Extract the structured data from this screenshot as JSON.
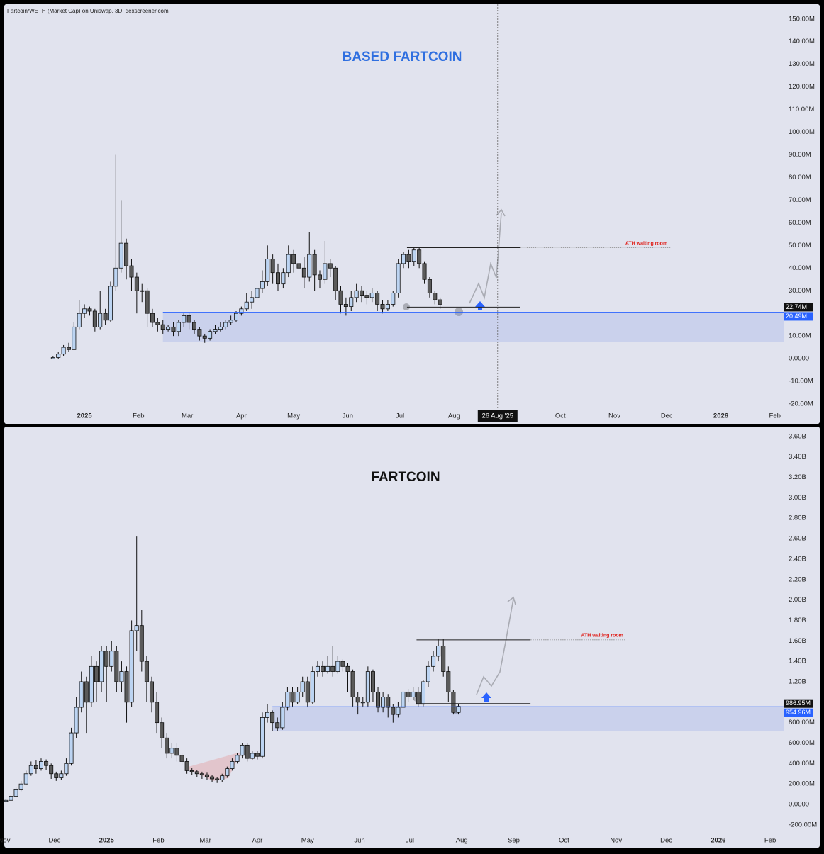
{
  "chart_data": [
    {
      "type": "candlestick",
      "source": "Fartcoin/WETH (Market Cap) on Uniswap, 3D, dexscreener.com",
      "title": "BASED FARTCOIN",
      "title_color": "#2f6fe0",
      "up_color": "#bcd4f2",
      "down_color": "#5a5a5a",
      "x": [
        -18,
        -15,
        -12,
        -9,
        -6,
        -3,
        0,
        3,
        6,
        9,
        12,
        15,
        18,
        21,
        24,
        27,
        30,
        33,
        36,
        39,
        42,
        45,
        48,
        51,
        54,
        57,
        60,
        63,
        66,
        69,
        72,
        75,
        78,
        81,
        84,
        87,
        90,
        93,
        96,
        99,
        102,
        105,
        108,
        111,
        114,
        117,
        120,
        123,
        126,
        129,
        132,
        135,
        138,
        141,
        144,
        147,
        150,
        153,
        156,
        159,
        162,
        165,
        168,
        171,
        174,
        177,
        180,
        183,
        186,
        189,
        192,
        195,
        198,
        201,
        204
      ],
      "open": [
        0,
        0.5,
        2,
        5,
        4,
        14,
        20,
        22,
        21,
        14,
        20,
        17,
        32,
        40,
        51,
        41,
        36,
        30,
        30,
        20,
        16,
        15,
        13,
        14,
        12,
        16,
        19,
        16,
        13,
        10,
        9,
        12,
        13,
        14,
        16,
        17,
        20,
        22,
        25,
        27,
        31,
        34,
        44,
        38,
        33,
        38,
        46,
        42,
        40,
        36,
        46,
        37,
        35,
        42,
        40,
        30,
        24,
        23,
        27,
        30,
        28,
        27,
        29,
        24,
        22,
        24,
        29,
        42,
        46,
        43,
        48,
        42,
        35,
        29,
        26
      ],
      "high": [
        1,
        3,
        6,
        7,
        16,
        26,
        24,
        23,
        22,
        30,
        22,
        34,
        90,
        70,
        53,
        44,
        38,
        33,
        31,
        22,
        18,
        17,
        15,
        16,
        17,
        20,
        20,
        17,
        14,
        11,
        13,
        15,
        16,
        17,
        19,
        21,
        23,
        29,
        30,
        37,
        39,
        50,
        46,
        42,
        40,
        50,
        48,
        44,
        45,
        56,
        48,
        39,
        52,
        44,
        41,
        32,
        27,
        30,
        33,
        32,
        30,
        31,
        30,
        26,
        26,
        30,
        44,
        47,
        48,
        49,
        49,
        43,
        36,
        30,
        27
      ],
      "low": [
        0,
        0,
        1,
        3,
        4,
        13,
        18,
        19,
        12,
        13,
        15,
        16,
        30,
        38,
        35,
        30,
        20,
        25,
        14,
        14,
        12,
        11,
        12,
        10,
        10,
        14,
        13,
        11,
        8,
        7,
        8,
        11,
        12,
        13,
        15,
        16,
        19,
        21,
        22,
        25,
        29,
        32,
        33,
        30,
        31,
        36,
        38,
        37,
        31,
        34,
        30,
        31,
        33,
        36,
        26,
        20,
        19,
        21,
        25,
        25,
        24,
        25,
        21,
        20,
        21,
        23,
        27,
        40,
        40,
        41,
        40,
        33,
        27,
        24,
        22
      ],
      "close": [
        0.5,
        2,
        5,
        4,
        14,
        20,
        22,
        21,
        14,
        20,
        17,
        32,
        40,
        51,
        41,
        36,
        30,
        30,
        20,
        16,
        15,
        13,
        14,
        12,
        16,
        19,
        16,
        13,
        10,
        9,
        12,
        13,
        14,
        16,
        17,
        20,
        22,
        25,
        27,
        31,
        34,
        44,
        38,
        33,
        38,
        46,
        42,
        40,
        36,
        46,
        37,
        35,
        42,
        40,
        30,
        24,
        23,
        27,
        30,
        28,
        27,
        29,
        24,
        22,
        24,
        29,
        42,
        46,
        43,
        48,
        42,
        35,
        29,
        26,
        24
      ],
      "xlim": [
        -46,
        401
      ],
      "ylim": [
        -22.5,
        156.5
      ],
      "xticks": [
        {
          "value": 0,
          "label": "2025"
        },
        {
          "value": 31,
          "label": "Feb"
        },
        {
          "value": 59,
          "label": "Mar"
        },
        {
          "value": 90,
          "label": "Apr"
        },
        {
          "value": 120,
          "label": "May"
        },
        {
          "value": 151,
          "label": "Jun"
        },
        {
          "value": 181,
          "label": "Jul"
        },
        {
          "value": 212,
          "label": "Aug"
        },
        {
          "value": 273,
          "label": "Oct"
        },
        {
          "value": 304,
          "label": "Nov"
        },
        {
          "value": 334,
          "label": "Dec"
        },
        {
          "value": 365,
          "label": "2026"
        },
        {
          "value": 396,
          "label": "Feb"
        }
      ],
      "yticks": [
        {
          "value": 150,
          "label": "150.00M"
        },
        {
          "value": 140,
          "label": "140.00M"
        },
        {
          "value": 130,
          "label": "130.00M"
        },
        {
          "value": 120,
          "label": "120.00M"
        },
        {
          "value": 110,
          "label": "110.00M"
        },
        {
          "value": 100,
          "label": "100.00M"
        },
        {
          "value": 90,
          "label": "90.00M"
        },
        {
          "value": 80,
          "label": "80.00M"
        },
        {
          "value": 70,
          "label": "70.00M"
        },
        {
          "value": 60,
          "label": "60.00M"
        },
        {
          "value": 50,
          "label": "50.00M"
        },
        {
          "value": 40,
          "label": "40.00M"
        },
        {
          "value": 30,
          "label": "30.00M"
        },
        {
          "value": 10,
          "label": "10.00M"
        },
        {
          "value": 0,
          "label": "0.0000"
        },
        {
          "value": -10,
          "label": "-10.00M"
        },
        {
          "value": -20,
          "label": "-20.00M"
        }
      ],
      "levels": [
        {
          "value": 49,
          "from": 185,
          "to": 250
        },
        {
          "value": 22.74,
          "label": "22.74M",
          "from": 185,
          "to": 250
        },
        {
          "value": 20.49,
          "label": "20.49M",
          "color": "#2962ff",
          "from": 45,
          "zone_low": 7.5
        }
      ],
      "annotation": {
        "text": "ATH waiting room",
        "to": 336
      },
      "crosshair": {
        "value": 237,
        "label": "26 Aug '25"
      }
    },
    {
      "type": "candlestick",
      "title": "FARTCOIN",
      "title_color": "#111111",
      "up_color": "#bcd4f2",
      "down_color": "#5a5a5a",
      "x": [
        -60,
        -57,
        -54,
        -51,
        -48,
        -45,
        -42,
        -39,
        -36,
        -33,
        -30,
        -27,
        -24,
        -21,
        -18,
        -15,
        -12,
        -9,
        -6,
        -3,
        0,
        3,
        6,
        9,
        12,
        15,
        18,
        21,
        24,
        27,
        30,
        33,
        36,
        39,
        42,
        45,
        48,
        51,
        54,
        57,
        60,
        63,
        66,
        69,
        72,
        75,
        78,
        81,
        84,
        87,
        90,
        93,
        96,
        99,
        102,
        105,
        108,
        111,
        114,
        117,
        120,
        123,
        126,
        129,
        132,
        135,
        138,
        141,
        144,
        147,
        150,
        153,
        156,
        159,
        162,
        165,
        168,
        171,
        174,
        177,
        180,
        183,
        186,
        189,
        192,
        195,
        198,
        201,
        204,
        207,
        210
      ],
      "open": [
        30,
        40,
        80,
        150,
        200,
        300,
        380,
        350,
        420,
        380,
        300,
        260,
        300,
        400,
        700,
        950,
        1200,
        1000,
        1350,
        1200,
        1500,
        1350,
        1500,
        1200,
        1300,
        1000,
        1700,
        1750,
        1400,
        1200,
        1000,
        800,
        650,
        500,
        550,
        480,
        420,
        330,
        320,
        300,
        290,
        270,
        250,
        240,
        280,
        350,
        420,
        480,
        580,
        450,
        500,
        470,
        850,
        900,
        800,
        750,
        950,
        1100,
        1000,
        1100,
        1200,
        1000,
        1300,
        1350,
        1300,
        1350,
        1300,
        1400,
        1350,
        1300,
        1050,
        1000,
        1000,
        1300,
        1100,
        950,
        1050,
        950,
        880,
        950,
        1100,
        1050,
        1100,
        980,
        1200,
        1350,
        1450,
        1550,
        1300,
        1100,
        900
      ],
      "high": [
        50,
        90,
        170,
        230,
        330,
        420,
        430,
        450,
        440,
        400,
        320,
        330,
        450,
        750,
        1050,
        1300,
        1250,
        1450,
        1400,
        1550,
        1550,
        1600,
        1550,
        1400,
        1350,
        1800,
        2620,
        1900,
        1450,
        1250,
        1100,
        850,
        700,
        600,
        600,
        500,
        450,
        360,
        340,
        320,
        310,
        290,
        270,
        300,
        370,
        450,
        500,
        600,
        600,
        520,
        520,
        900,
        980,
        920,
        850,
        1000,
        1150,
        1150,
        1150,
        1250,
        1250,
        1350,
        1400,
        1400,
        1450,
        1550,
        1450,
        1420,
        1380,
        1320,
        1100,
        1050,
        1350,
        1320,
        1150,
        1100,
        1080,
        980,
        1000,
        1120,
        1130,
        1150,
        1150,
        1220,
        1400,
        1500,
        1620,
        1620,
        1350,
        1120,
        980
      ],
      "low": [
        20,
        35,
        70,
        130,
        190,
        280,
        300,
        330,
        340,
        250,
        230,
        240,
        280,
        380,
        650,
        900,
        700,
        950,
        1000,
        1100,
        1000,
        1300,
        1100,
        1100,
        800,
        950,
        1500,
        1300,
        1000,
        900,
        700,
        550,
        450,
        450,
        420,
        380,
        300,
        290,
        270,
        250,
        240,
        220,
        210,
        220,
        260,
        330,
        400,
        450,
        420,
        430,
        440,
        450,
        800,
        720,
        720,
        730,
        920,
        950,
        980,
        1050,
        950,
        980,
        1250,
        1250,
        1280,
        1250,
        1280,
        1300,
        1100,
        950,
        880,
        950,
        950,
        1000,
        900,
        900,
        850,
        800,
        850,
        930,
        1000,
        1020,
        950,
        960,
        1150,
        1300,
        1400,
        1250,
        1000,
        880,
        880
      ],
      "close": [
        40,
        80,
        150,
        200,
        300,
        380,
        350,
        420,
        380,
        300,
        260,
        300,
        400,
        700,
        950,
        1200,
        1000,
        1350,
        1200,
        1500,
        1350,
        1500,
        1200,
        1300,
        1000,
        1700,
        1750,
        1400,
        1200,
        1000,
        800,
        650,
        500,
        550,
        480,
        420,
        330,
        320,
        300,
        290,
        270,
        250,
        240,
        280,
        350,
        420,
        480,
        580,
        450,
        500,
        470,
        850,
        900,
        800,
        750,
        950,
        1100,
        1000,
        1100,
        1200,
        1000,
        1300,
        1350,
        1300,
        1350,
        1300,
        1400,
        1350,
        1300,
        1050,
        1000,
        1000,
        1300,
        1100,
        950,
        1050,
        950,
        880,
        950,
        1100,
        1050,
        1100,
        980,
        1200,
        1350,
        1450,
        1550,
        1300,
        1100,
        900,
        960
      ],
      "xlim": [
        -61,
        404
      ],
      "ylim": [
        -298,
        3696
      ],
      "xticks": [
        {
          "value": -61,
          "label": "Nov"
        },
        {
          "value": -31,
          "label": "Dec"
        },
        {
          "value": 0,
          "label": "2025"
        },
        {
          "value": 31,
          "label": "Feb"
        },
        {
          "value": 59,
          "label": "Mar"
        },
        {
          "value": 90,
          "label": "Apr"
        },
        {
          "value": 120,
          "label": "May"
        },
        {
          "value": 151,
          "label": "Jun"
        },
        {
          "value": 181,
          "label": "Jul"
        },
        {
          "value": 212,
          "label": "Aug"
        },
        {
          "value": 243,
          "label": "Sep"
        },
        {
          "value": 273,
          "label": "Oct"
        },
        {
          "value": 304,
          "label": "Nov"
        },
        {
          "value": 334,
          "label": "Dec"
        },
        {
          "value": 365,
          "label": "2026"
        },
        {
          "value": 396,
          "label": "Feb"
        }
      ],
      "yticks": [
        {
          "value": 3600,
          "label": "3.60B"
        },
        {
          "value": 3400,
          "label": "3.40B"
        },
        {
          "value": 3200,
          "label": "3.20B"
        },
        {
          "value": 3000,
          "label": "3.00B"
        },
        {
          "value": 2800,
          "label": "2.80B"
        },
        {
          "value": 2600,
          "label": "2.60B"
        },
        {
          "value": 2400,
          "label": "2.40B"
        },
        {
          "value": 2200,
          "label": "2.20B"
        },
        {
          "value": 2000,
          "label": "2.00B"
        },
        {
          "value": 1800,
          "label": "1.80B"
        },
        {
          "value": 1600,
          "label": "1.60B"
        },
        {
          "value": 1400,
          "label": "1.40B"
        },
        {
          "value": 1200,
          "label": "1.20B"
        },
        {
          "value": 800,
          "label": "800.00M"
        },
        {
          "value": 600,
          "label": "600.00M"
        },
        {
          "value": 400,
          "label": "400.00M"
        },
        {
          "value": 200,
          "label": "200.00M"
        },
        {
          "value": 0,
          "label": "0.0000"
        },
        {
          "value": -200,
          "label": "-200.00M"
        }
      ],
      "levels": [
        {
          "value": 1610,
          "from": 185,
          "to": 253
        },
        {
          "value": 986.95,
          "label": "986.95M",
          "from": 185,
          "to": 253
        },
        {
          "value": 954.96,
          "label": "954.96M",
          "color": "#2962ff",
          "from": 99,
          "zone_low": 720
        }
      ],
      "annotation": {
        "text": "ATH waiting room",
        "to": 310
      }
    }
  ]
}
